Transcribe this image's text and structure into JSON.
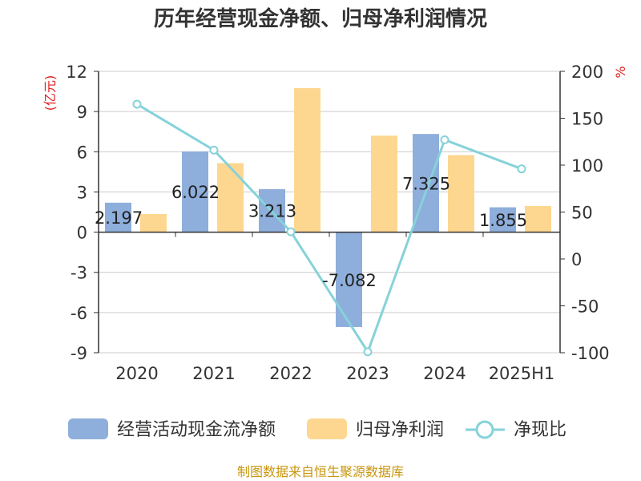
{
  "title": "历年经营现金净额、归母净利润情况",
  "source": "制图数据来自恒生聚源数据库",
  "colors": {
    "cash": "#8eaedb",
    "profit": "#fdd690",
    "ratio": "#86d2da",
    "unit": "#e02020",
    "axis": "#333333",
    "grid": "#cccccc"
  },
  "chart_data": {
    "type": "bar",
    "title": "历年经营现金净额、归母净利润情况",
    "categories": [
      "2020",
      "2021",
      "2022",
      "2023",
      "2024",
      "2025H1"
    ],
    "y_left": {
      "unit": "(亿元)",
      "min": -9,
      "max": 12,
      "ticks": [
        12,
        9,
        6,
        3,
        0,
        -3,
        -6,
        -9
      ]
    },
    "y_right": {
      "unit": "%",
      "min": -100,
      "max": 200,
      "ticks": [
        200,
        150,
        100,
        50,
        0,
        -50,
        -100
      ]
    },
    "grid": true,
    "legend_position": "bottom",
    "series": [
      {
        "name": "经营活动现金流净额",
        "type": "bar",
        "axis": "left",
        "values": [
          2.197,
          6.022,
          3.213,
          -7.082,
          7.325,
          1.855
        ],
        "labels": [
          "2.197",
          "6.022",
          "3.213",
          "-7.082",
          "7.325",
          "1.855"
        ]
      },
      {
        "name": "归母净利润",
        "type": "bar",
        "axis": "left",
        "values": [
          1.35,
          5.15,
          10.75,
          7.2,
          5.75,
          1.95
        ]
      },
      {
        "name": "净现比",
        "type": "line",
        "axis": "right",
        "values": [
          165,
          116,
          29,
          -99,
          127,
          96
        ]
      }
    ]
  }
}
